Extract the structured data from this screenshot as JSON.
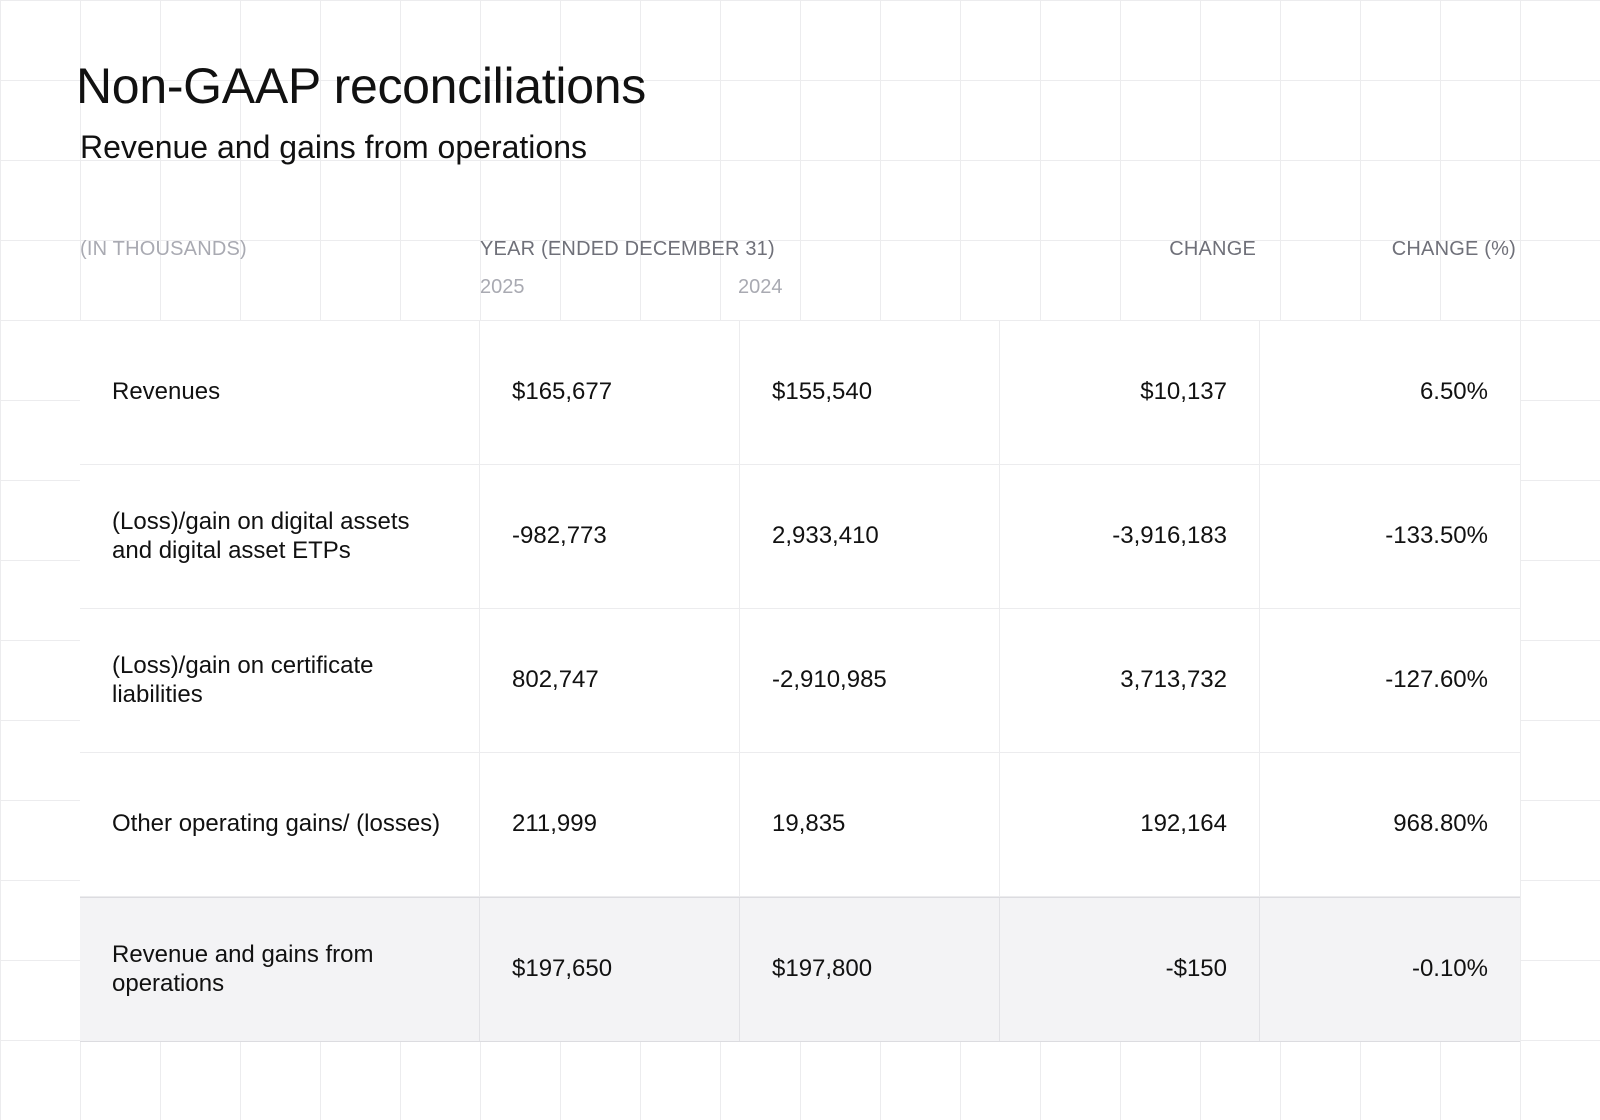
{
  "title": "Non-GAAP reconciliations",
  "subtitle": "Revenue and gains from operations",
  "header": {
    "units": "(IN THOUSANDS)",
    "period": "YEAR (ENDED DECEMBER 31)",
    "year_current": "2025",
    "year_prior": "2024",
    "change": "CHANGE",
    "change_pct": "CHANGE (%)"
  },
  "rows": [
    {
      "label": "Revenues",
      "y2025": "$165,677",
      "y2024": "$155,540",
      "change": "$10,137",
      "change_pct": "6.50%"
    },
    {
      "label": "(Loss)/gain on digital assets and digital asset ETPs",
      "y2025": "-982,773",
      "y2024": "2,933,410",
      "change": "-3,916,183",
      "change_pct": "-133.50%"
    },
    {
      "label": "(Loss)/gain on certificate liabilities",
      "y2025": "802,747",
      "y2024": "-2,910,985",
      "change": "3,713,732",
      "change_pct": "-127.60%"
    },
    {
      "label": "Other operating gains/ (losses)",
      "y2025": "211,999",
      "y2024": "19,835",
      "change": "192,164",
      "change_pct": "968.80%"
    },
    {
      "label": "Revenue and gains from operations",
      "y2025": "$197,650",
      "y2024": "$197,800",
      "change": "-$150",
      "change_pct": "-0.10%"
    }
  ]
}
